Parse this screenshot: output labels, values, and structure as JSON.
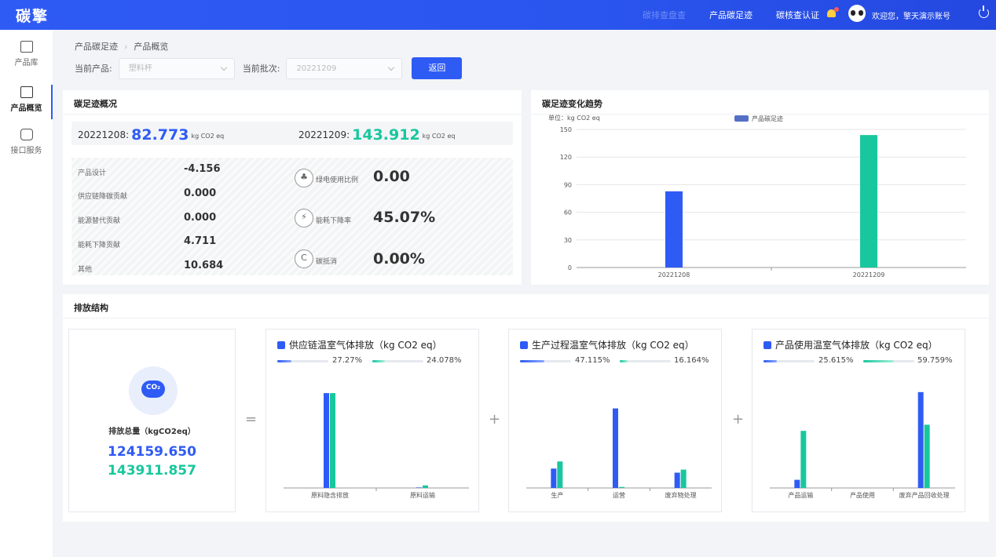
{
  "app": {
    "logo": "碳擎"
  },
  "topnav": {
    "items": [
      "碳排查盘查",
      "产品碳足迹",
      "碳核查认证"
    ],
    "welcome": "欢迎您，擎天演示账号"
  },
  "sidebar": {
    "items": [
      {
        "label": "产品库",
        "icon": "store-icon"
      },
      {
        "label": "产品概览",
        "icon": "overview-icon"
      },
      {
        "label": "接口服务",
        "icon": "plug-icon"
      }
    ]
  },
  "breadcrumb": {
    "root": "产品碳足迹",
    "current": "产品概览"
  },
  "filters": {
    "product_label": "当前产品:",
    "product_value": "塑料杯",
    "batch_label": "当前批次:",
    "batch_value": "20221209",
    "back_button": "返回"
  },
  "overview": {
    "title": "碳足迹概况",
    "batch1": {
      "id": "20221208:",
      "value": "82.773",
      "unit": "kg CO2 eq"
    },
    "batch2": {
      "id": "20221209:",
      "value": "143.912",
      "unit": "kg CO2 eq"
    },
    "metrics": [
      {
        "label": "产品设计",
        "value": "-4.156"
      },
      {
        "label": "供应链降碳贡献",
        "value": "0.000"
      },
      {
        "label": "能源替代贡献",
        "value": "0.000"
      },
      {
        "label": "能耗下降贡献",
        "value": "4.711"
      },
      {
        "label": "其他",
        "value": "10.684"
      }
    ],
    "ratios": [
      {
        "label": "绿电使用比例",
        "value": "0.00",
        "icon": "leaf-icon"
      },
      {
        "label": "能耗下降率",
        "value": "45.07%",
        "icon": "lightning-icon"
      },
      {
        "label": "碳抵消",
        "value": "0.00%",
        "icon": "carbon-offset-icon"
      }
    ]
  },
  "trend": {
    "title": "碳足迹变化趋势",
    "unit_label": "单位：kg CO2 eq",
    "colors": {
      "blue": "#2f5bf5",
      "green": "#18c79e"
    }
  },
  "chart_data": [
    {
      "type": "bar",
      "title": "",
      "unit": "单位：kg CO2 eq",
      "legend": "产品碳足迹",
      "categories": [
        "20221208",
        "20221209"
      ],
      "values": [
        82.773,
        143.912
      ],
      "ylim": [
        0,
        150
      ],
      "yticks": [
        0,
        30,
        60,
        90,
        120,
        150
      ]
    },
    {
      "type": "bar",
      "title": "供应链温室气体排放（kg CO2 eq）",
      "categories": [
        "原料隐含排放",
        "原料运输"
      ],
      "series": [
        {
          "values": [
            93,
            0.5
          ]
        },
        {
          "values": [
            93,
            2.5
          ]
        }
      ],
      "ylim": [
        0,
        100
      ]
    },
    {
      "type": "bar",
      "title": "生产过程温室气体排放（kg CO2 eq）",
      "categories": [
        "生产",
        "运营",
        "废弃物处理"
      ],
      "series": [
        {
          "values": [
            19,
            78,
            15
          ]
        },
        {
          "values": [
            26,
            1,
            18
          ]
        }
      ],
      "ylim": [
        0,
        100
      ]
    },
    {
      "type": "bar",
      "title": "产品使用温室气体排放（kg CO2 eq）",
      "categories": [
        "产品运输",
        "产品使用",
        "废弃产品回收处理"
      ],
      "series": [
        {
          "values": [
            8,
            0,
            94
          ]
        },
        {
          "values": [
            56,
            0,
            62
          ]
        }
      ],
      "ylim": [
        0,
        100
      ]
    }
  ],
  "structure": {
    "title": "排放结构",
    "total_label": "排放总量（kgCO2eq）",
    "total_1": "124159.650",
    "total_2": "143911.857",
    "cloud_text": "CO₂",
    "eq": "=",
    "plus": "+",
    "boxes": [
      {
        "title": "供应链温室气体排放（kg CO2 eq）",
        "pct1": "27.27%",
        "pct2": "24.078%",
        "fill1": 0.27,
        "fill2": 0.24,
        "icon": "shield-icon"
      },
      {
        "title": "生产过程温室气体排放（kg CO2 eq）",
        "pct1": "47.115%",
        "pct2": "16.164%",
        "fill1": 0.47,
        "fill2": 0.16,
        "icon": "factory-icon"
      },
      {
        "title": "产品使用温室气体排放（kg CO2 eq）",
        "pct1": "25.615%",
        "pct2": "59.759%",
        "fill1": 0.26,
        "fill2": 0.6,
        "icon": "cube-icon"
      }
    ]
  }
}
